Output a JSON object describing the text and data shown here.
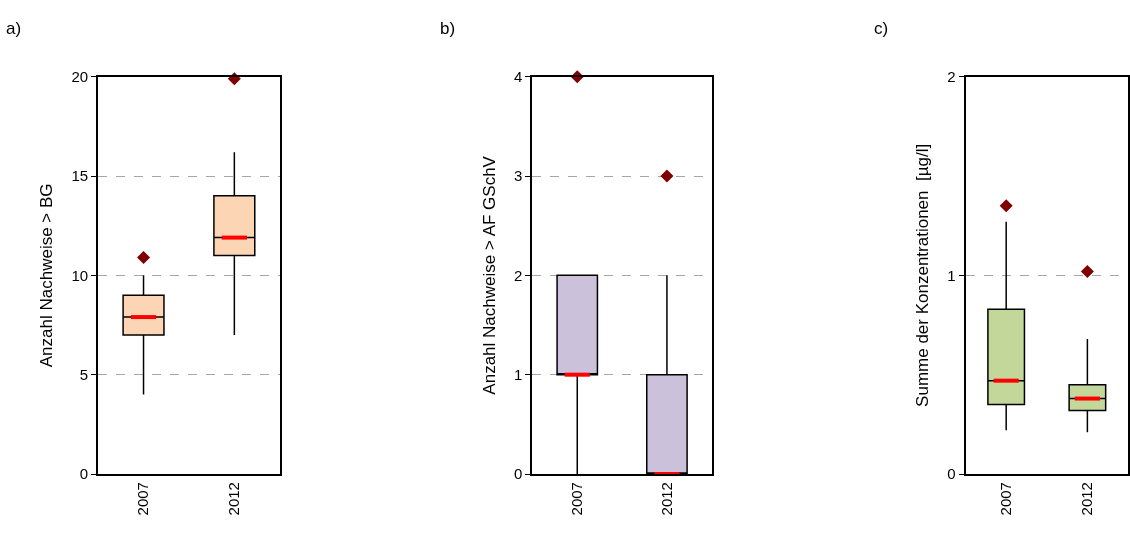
{
  "chart_data": [
    {
      "type": "box",
      "title": "a)",
      "ylabel": "Anzahl Nachweise > BG",
      "categories": [
        "2007",
        "2012"
      ],
      "color": "#fcd5b5",
      "marker": "diamond",
      "grid": "y",
      "ylim": [
        0,
        20
      ],
      "yticks": [
        0,
        5,
        10,
        15,
        20
      ],
      "boxes": [
        {
          "low": 4,
          "q1": 7,
          "median": 7.9,
          "q3": 9,
          "high": 10,
          "outliers": [
            10.9
          ]
        },
        {
          "low": 7,
          "q1": 11,
          "median": 11.9,
          "q3": 14,
          "high": 16.2,
          "outliers": [
            19.9
          ]
        }
      ]
    },
    {
      "type": "box",
      "title": "b)",
      "ylabel": "Anzahl Nachweise > AF GSchV",
      "categories": [
        "2007",
        "2012"
      ],
      "color": "#ccc1da",
      "marker": "diamond",
      "grid": "y",
      "ylim": [
        0,
        4
      ],
      "yticks": [
        0,
        1,
        2,
        3,
        4
      ],
      "boxes": [
        {
          "low": 0,
          "q1": 1,
          "median": 1,
          "q3": 2,
          "high": 2,
          "outliers": [
            4
          ]
        },
        {
          "low": 0,
          "q1": 0,
          "median": 0,
          "q3": 1,
          "high": 2,
          "outliers": [
            3
          ]
        }
      ]
    },
    {
      "type": "box",
      "title": "c)",
      "ylabel": "Summe der Konzentrationen  [µg/l]",
      "categories": [
        "2007",
        "2012"
      ],
      "color": "#c4d79b",
      "marker": "diamond",
      "grid": "y",
      "ylim": [
        0,
        2
      ],
      "yticks": [
        0,
        1,
        2
      ],
      "boxes": [
        {
          "low": 0.22,
          "q1": 0.35,
          "median": 0.47,
          "q3": 0.83,
          "high": 1.27,
          "outliers": [
            1.35
          ]
        },
        {
          "low": 0.21,
          "q1": 0.32,
          "median": 0.38,
          "q3": 0.45,
          "high": 0.68,
          "outliers": [
            1.02
          ]
        }
      ]
    }
  ]
}
